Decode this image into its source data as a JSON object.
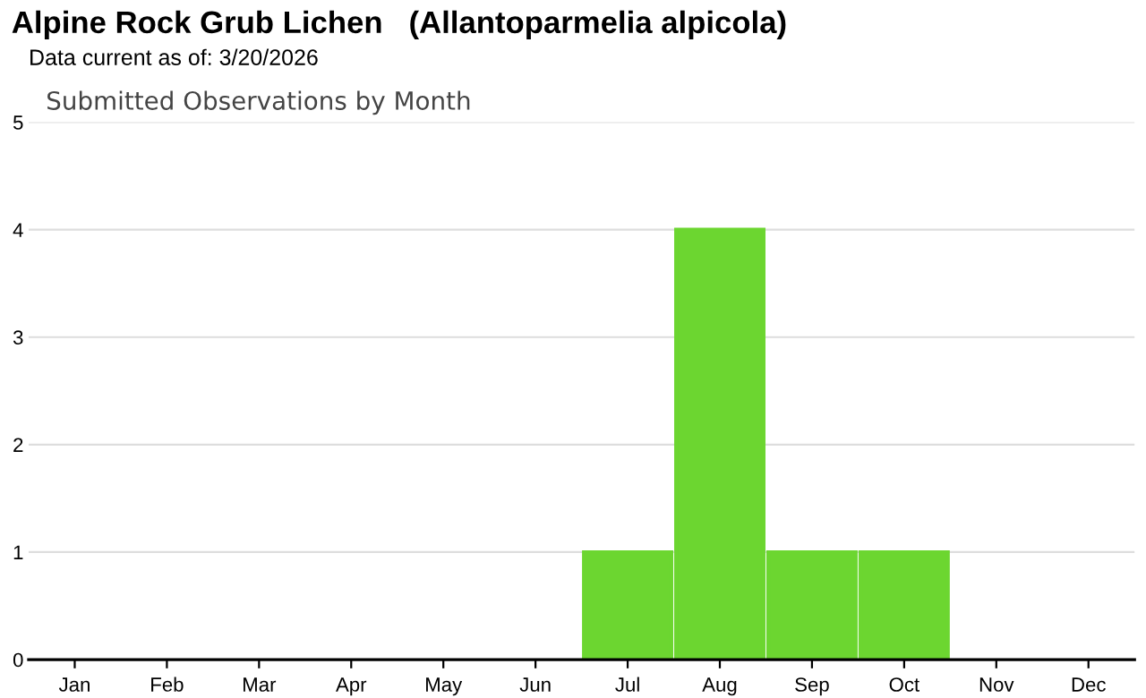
{
  "chart_data": {
    "type": "bar",
    "title": "Alpine Rock Grub Lichen   (Allantoparmelia alpicola)",
    "subtitle": "Data current as of: 3/20/2026",
    "annotations": [
      "Submitted Observations by Month"
    ],
    "categories": [
      "Jan",
      "Feb",
      "Mar",
      "Apr",
      "May",
      "Jun",
      "Jul",
      "Aug",
      "Sep",
      "Oct",
      "Nov",
      "Dec"
    ],
    "values": [
      0,
      0,
      0,
      0,
      0,
      0,
      1,
      4,
      1,
      1,
      0,
      0
    ],
    "color": "#6cd630",
    "ylim": [
      0,
      5
    ],
    "yticks": [
      0,
      1,
      2,
      3,
      4,
      5
    ],
    "grid": "y"
  }
}
